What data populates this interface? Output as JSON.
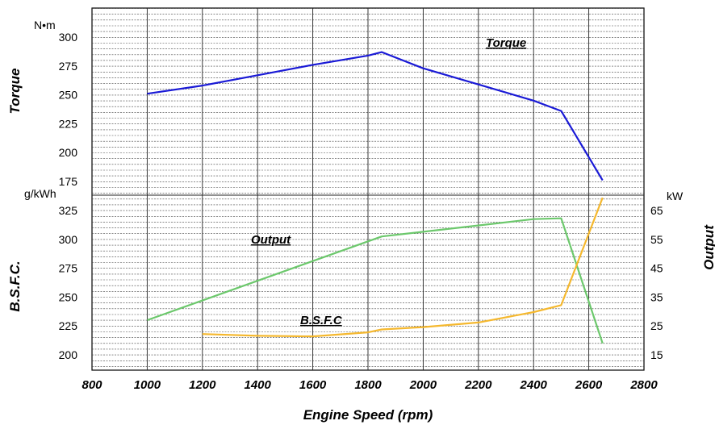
{
  "chart_data": {
    "type": "line",
    "xlabel": "Engine Speed  (rpm)",
    "x_ticks": [
      800,
      1000,
      1200,
      1400,
      1600,
      1800,
      2000,
      2200,
      2400,
      2600,
      2800
    ],
    "xlim": [
      800,
      2800
    ],
    "grid": true,
    "axes": {
      "torque": {
        "label": "Torque",
        "unit": "N•m",
        "range": [
          175,
          300
        ],
        "ticks": [
          175,
          200,
          225,
          250,
          275,
          300
        ]
      },
      "bsfc": {
        "label": "B.S.F.C.",
        "unit": "g/kWh",
        "range": [
          200,
          325
        ],
        "ticks": [
          200,
          225,
          250,
          275,
          300,
          325
        ]
      },
      "output": {
        "label": "Output",
        "unit": "kW",
        "range": [
          15,
          65
        ],
        "ticks": [
          15,
          25,
          35,
          45,
          55,
          65
        ]
      }
    },
    "series": [
      {
        "name": "Torque",
        "axis": "torque",
        "color": "#1a1ad6",
        "points": [
          [
            1000,
            251
          ],
          [
            1200,
            258
          ],
          [
            1400,
            267
          ],
          [
            1600,
            276
          ],
          [
            1800,
            284
          ],
          [
            1850,
            287
          ],
          [
            2000,
            273
          ],
          [
            2200,
            259
          ],
          [
            2400,
            245
          ],
          [
            2500,
            236
          ],
          [
            2650,
            176
          ]
        ]
      },
      {
        "name": "Output",
        "axis": "output",
        "color": "#6cc86c",
        "points": [
          [
            1000,
            27.0
          ],
          [
            1850,
            56.0
          ],
          [
            2400,
            62.0
          ],
          [
            2500,
            62.3
          ],
          [
            2650,
            19.0
          ]
        ]
      },
      {
        "name": "B.S.F.C",
        "axis": "bsfc",
        "color": "#f5b82e",
        "points": [
          [
            1200,
            218
          ],
          [
            1400,
            216.5
          ],
          [
            1600,
            216
          ],
          [
            1800,
            219.5
          ],
          [
            1850,
            222
          ],
          [
            2000,
            224
          ],
          [
            2200,
            228
          ],
          [
            2400,
            237
          ],
          [
            2500,
            243
          ],
          [
            2650,
            336
          ]
        ]
      }
    ]
  }
}
